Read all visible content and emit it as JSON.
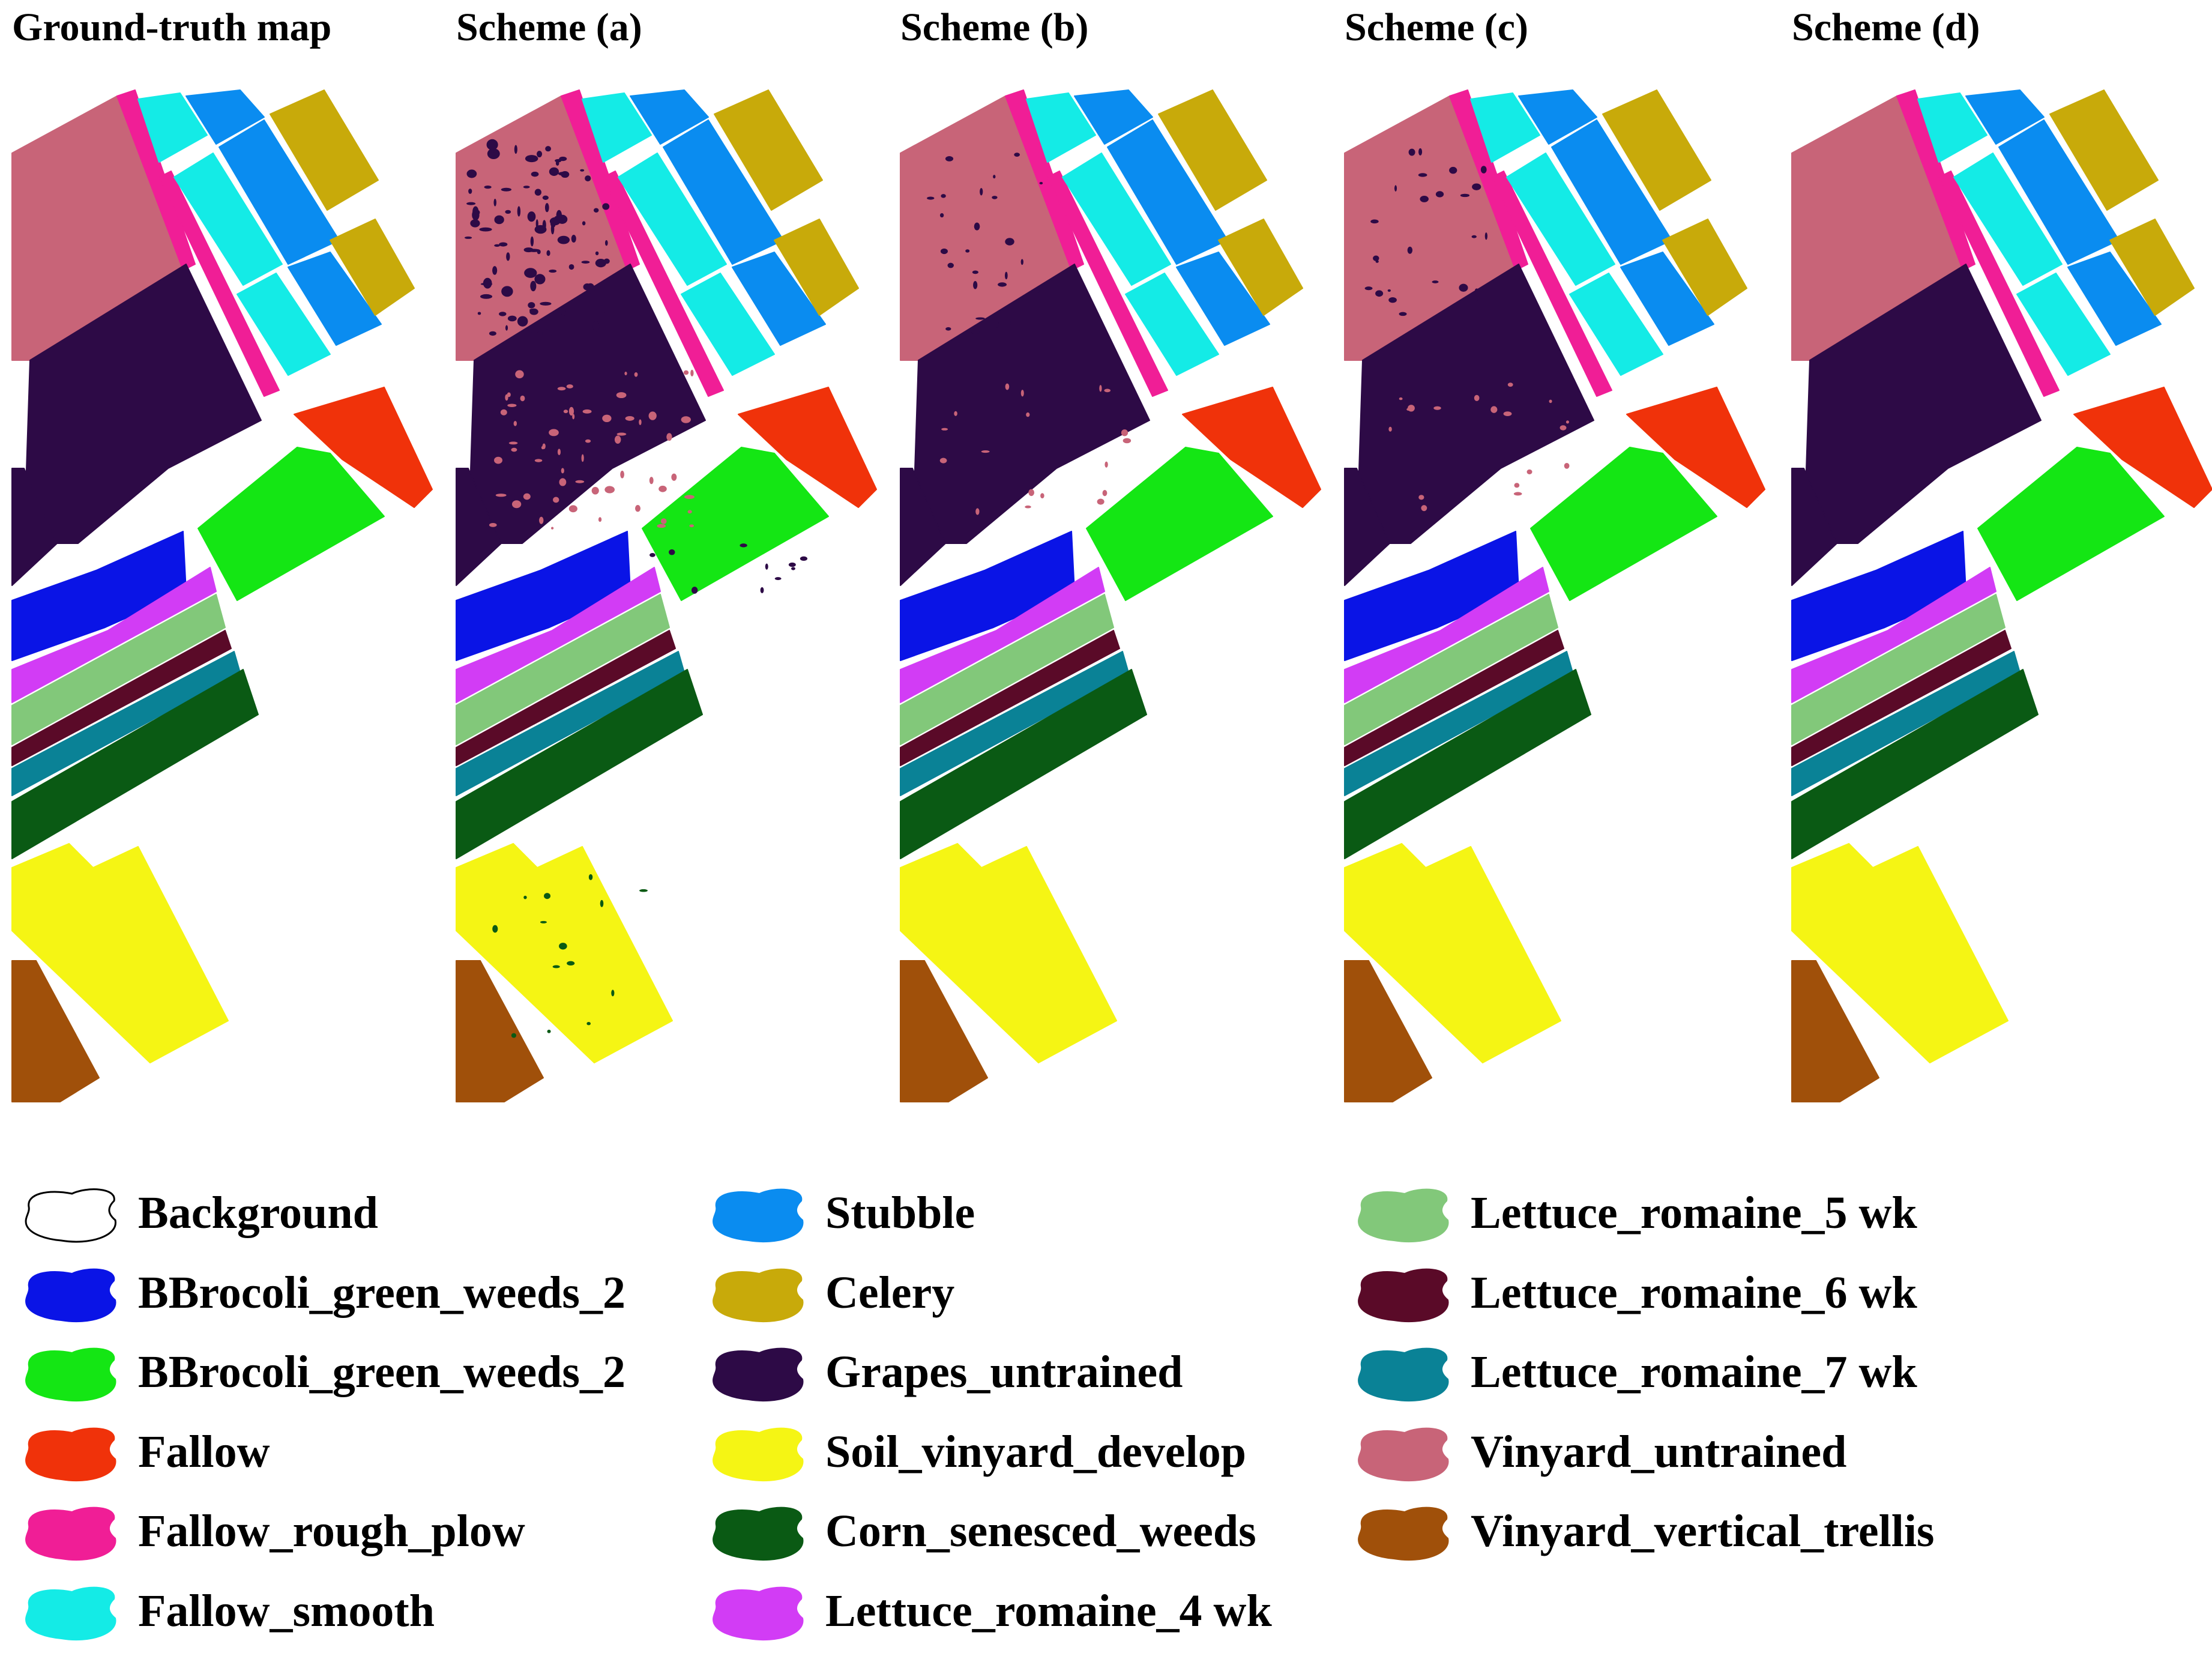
{
  "panels": [
    {
      "title": "Ground-truth map",
      "variant": "truth"
    },
    {
      "title": "Scheme (a)",
      "variant": "noisy"
    },
    {
      "title": "Scheme (b)",
      "variant": "light"
    },
    {
      "title": "Scheme (c)",
      "variant": "light"
    },
    {
      "title": "Scheme (d)",
      "variant": "clean"
    }
  ],
  "classes": [
    {
      "key": "background",
      "label": "Background",
      "color": "#ffffff",
      "icon": "blob-outline-icon"
    },
    {
      "key": "brocoli1",
      "label": "BBrocoli_green_weeds_2",
      "color": "#0a14e6"
    },
    {
      "key": "brocoli2",
      "label": "BBrocoli_green_weeds_2",
      "color": "#14e614"
    },
    {
      "key": "fallow",
      "label": "Fallow",
      "color": "#f0320a"
    },
    {
      "key": "rough",
      "label": "Fallow_rough_plow",
      "color": "#f01e96"
    },
    {
      "key": "smooth",
      "label": "Fallow_smooth",
      "color": "#14ebe6"
    },
    {
      "key": "stubble",
      "label": "Stubble",
      "color": "#0a8cf0"
    },
    {
      "key": "celery",
      "label": "Celery",
      "color": "#c8aa0a"
    },
    {
      "key": "grapes",
      "label": "Grapes_untrained",
      "color": "#2d0a46"
    },
    {
      "key": "soil",
      "label": "Soil_vinyard_develop",
      "color": "#f5f514"
    },
    {
      "key": "corn",
      "label": "Corn_senesced_weeds",
      "color": "#0a5a14"
    },
    {
      "key": "lettuce4",
      "label": "Lettuce_romaine_4 wk",
      "color": "#d23cf5"
    },
    {
      "key": "lettuce5",
      "label": "Lettuce_romaine_5 wk",
      "color": "#82c87a"
    },
    {
      "key": "lettuce6",
      "label": "Lettuce_romaine_6 wk",
      "color": "#5a0a28"
    },
    {
      "key": "lettuce7",
      "label": "Lettuce_romaine_7 wk",
      "color": "#0a8296"
    },
    {
      "key": "vinyard",
      "label": "Vinyard_untrained",
      "color": "#c86478"
    },
    {
      "key": "trellis",
      "label": "Vinyard_vertical_trellis",
      "color": "#a0500a"
    }
  ]
}
